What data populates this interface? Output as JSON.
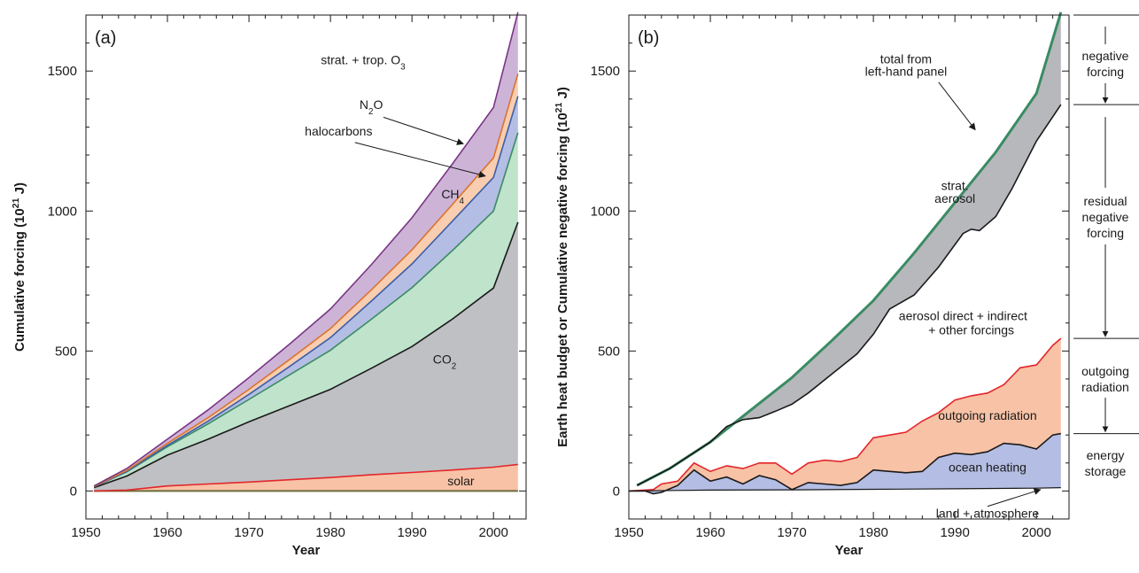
{
  "chart_data": [
    {
      "panel_label": "(a)",
      "type": "area",
      "stacked": true,
      "xlabel": "Year",
      "ylabel": "Cumulative forcing (10^21 J)",
      "xlim": [
        1950,
        2004
      ],
      "ylim": [
        -100,
        1700
      ],
      "xticks": [
        1950,
        1960,
        1970,
        1980,
        1990,
        2000
      ],
      "yticks": [
        0,
        500,
        1000,
        1500
      ],
      "x": [
        1951,
        1955,
        1960,
        1965,
        1970,
        1975,
        1980,
        1985,
        1990,
        1995,
        2000,
        2003
      ],
      "series": [
        {
          "name": "solar",
          "color": "#f7c2a6",
          "line": "#e3262b",
          "values": [
            0,
            3,
            18,
            25,
            32,
            40,
            48,
            58,
            66,
            75,
            85,
            95
          ]
        },
        {
          "name": "CO2",
          "color": "#bfc0c3",
          "line": "#1a1a1a",
          "values": [
            12,
            50,
            110,
            160,
            215,
            265,
            315,
            380,
            450,
            540,
            640,
            865
          ]
        },
        {
          "name": "CH4",
          "color": "#bfe3cb",
          "line": "#3a8b64",
          "values": [
            3,
            15,
            30,
            55,
            80,
            110,
            140,
            175,
            210,
            245,
            275,
            320
          ]
        },
        {
          "name": "halocarbons",
          "color": "#b4bde3",
          "line": "#3c5fa8",
          "values": [
            0,
            2,
            5,
            10,
            18,
            30,
            45,
            65,
            85,
            105,
            120,
            130
          ]
        },
        {
          "name": "N2O",
          "color": "#f8cdb0",
          "line": "#d9742e",
          "values": [
            1,
            3,
            7,
            12,
            18,
            25,
            32,
            40,
            50,
            60,
            70,
            80
          ]
        },
        {
          "name": "strat. + trop. O3",
          "color": "#cdb4d7",
          "line": "#7a3585",
          "values": [
            2,
            7,
            15,
            28,
            42,
            55,
            70,
            90,
            115,
            145,
            180,
            220
          ]
        }
      ],
      "annotations": [
        "strat. + trop. O3",
        "N2O",
        "halocarbons",
        "CH4",
        "CO2",
        "solar"
      ]
    },
    {
      "panel_label": "(b)",
      "type": "area",
      "xlabel": "Year",
      "ylabel": "Earth heat budget or Cumulative negative forcing (10^21 J)",
      "xlim": [
        1950,
        2004
      ],
      "ylim": [
        -100,
        1700
      ],
      "xticks": [
        1950,
        1960,
        1970,
        1980,
        1990,
        2000
      ],
      "yticks": [
        0,
        500,
        1000,
        1500
      ],
      "series": [
        {
          "name": "total from left-hand panel",
          "color": "#3a8b64",
          "x": [
            1951,
            1955,
            1960,
            1965,
            1970,
            1975,
            1980,
            1985,
            1990,
            1995,
            2000,
            2003
          ],
          "values": [
            20,
            80,
            175,
            290,
            405,
            540,
            680,
            850,
            1030,
            1210,
            1420,
            1710
          ]
        },
        {
          "name": "aerosol direct + indirect + other forcings",
          "color": "#1a1a1a",
          "x": [
            1951,
            1955,
            1960,
            1962,
            1964,
            1966,
            1968,
            1970,
            1972,
            1975,
            1978,
            1980,
            1982,
            1985,
            1988,
            1991,
            1992,
            1993,
            1995,
            1997,
            2000,
            2003
          ],
          "values": [
            20,
            80,
            175,
            230,
            255,
            262,
            285,
            310,
            350,
            420,
            490,
            560,
            650,
            700,
            800,
            920,
            935,
            930,
            980,
            1080,
            1250,
            1380
          ]
        },
        {
          "name": "outgoing radiation",
          "color": "#e3262b",
          "x": [
            1950,
            1953,
            1954,
            1956,
            1958,
            1960,
            1962,
            1964,
            1966,
            1968,
            1970,
            1972,
            1974,
            1976,
            1978,
            1980,
            1982,
            1984,
            1986,
            1988,
            1990,
            1992,
            1994,
            1996,
            1998,
            2000,
            2002,
            2003
          ],
          "values": [
            0,
            5,
            25,
            35,
            100,
            70,
            90,
            80,
            100,
            100,
            60,
            100,
            110,
            105,
            120,
            190,
            200,
            210,
            250,
            280,
            325,
            340,
            350,
            380,
            440,
            450,
            520,
            545
          ]
        },
        {
          "name": "ocean heating",
          "color": "#1a1a1a",
          "x": [
            1950,
            1952,
            1953,
            1954,
            1956,
            1958,
            1960,
            1962,
            1964,
            1966,
            1968,
            1970,
            1972,
            1974,
            1976,
            1978,
            1980,
            1982,
            1984,
            1986,
            1988,
            1990,
            1992,
            1994,
            1996,
            1998,
            2000,
            2002,
            2003
          ],
          "values": [
            0,
            0,
            -10,
            -5,
            20,
            75,
            35,
            50,
            25,
            55,
            40,
            5,
            30,
            25,
            20,
            30,
            75,
            70,
            65,
            70,
            120,
            135,
            130,
            140,
            170,
            165,
            150,
            200,
            205
          ]
        },
        {
          "name": "land + atmosphere",
          "color": "#1a1a1a",
          "x": [
            1950,
            1960,
            1970,
            1980,
            1990,
            2000,
            2003
          ],
          "values": [
            0,
            3,
            4,
            6,
            8,
            10,
            12
          ]
        }
      ],
      "fill_labels": [
        "strat. aerosol",
        "aerosol direct + indirect + other forcings",
        "outgoing radiation",
        "ocean heating",
        "land + atmosphere"
      ],
      "colors": {
        "strat_aerosol": "#b7b8bb",
        "outgoing_radiation": "#f7c2a6",
        "ocean_heating": "#b4bde3"
      },
      "side_labels": [
        "negative forcing",
        "residual negative forcing",
        "outgoing radiation",
        "energy storage"
      ]
    }
  ]
}
